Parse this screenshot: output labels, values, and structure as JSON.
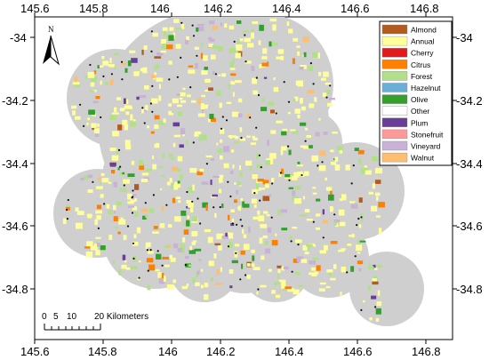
{
  "axes": {
    "x_ticks": [
      "145.6",
      "145.8",
      "146",
      "146.2",
      "146.4",
      "146.6",
      "146.8"
    ],
    "y_ticks": [
      "-34",
      "-34.2",
      "-34.4",
      "-34.6",
      "-34.8"
    ]
  },
  "north_arrow": {
    "label": "N",
    "icon": "north-arrow-icon"
  },
  "legend": {
    "items": [
      {
        "label": "Almond",
        "color": "#b35a1f"
      },
      {
        "label": "Annual",
        "color": "#ffff99"
      },
      {
        "label": "Cherry",
        "color": "#e31a1c"
      },
      {
        "label": "Citrus",
        "color": "#ff7f00"
      },
      {
        "label": "Forest",
        "color": "#b2df8a"
      },
      {
        "label": "Hazelnut",
        "color": "#6baed6"
      },
      {
        "label": "Olive",
        "color": "#33a02c"
      },
      {
        "label": "Other",
        "color": "#ffffff"
      },
      {
        "label": "Plum",
        "color": "#6a3d9a"
      },
      {
        "label": "Stonefruit",
        "color": "#fb9a99"
      },
      {
        "label": "Vineyard",
        "color": "#cab2d6"
      },
      {
        "label": "Walnut",
        "color": "#fdbf6f"
      }
    ]
  },
  "scale_bar": {
    "labels": [
      "0",
      "5",
      "10",
      "20 Kilometers"
    ]
  },
  "colors": {
    "study_area": "#cfcfcf",
    "point_marker": "#111111",
    "frame": "#000000"
  }
}
